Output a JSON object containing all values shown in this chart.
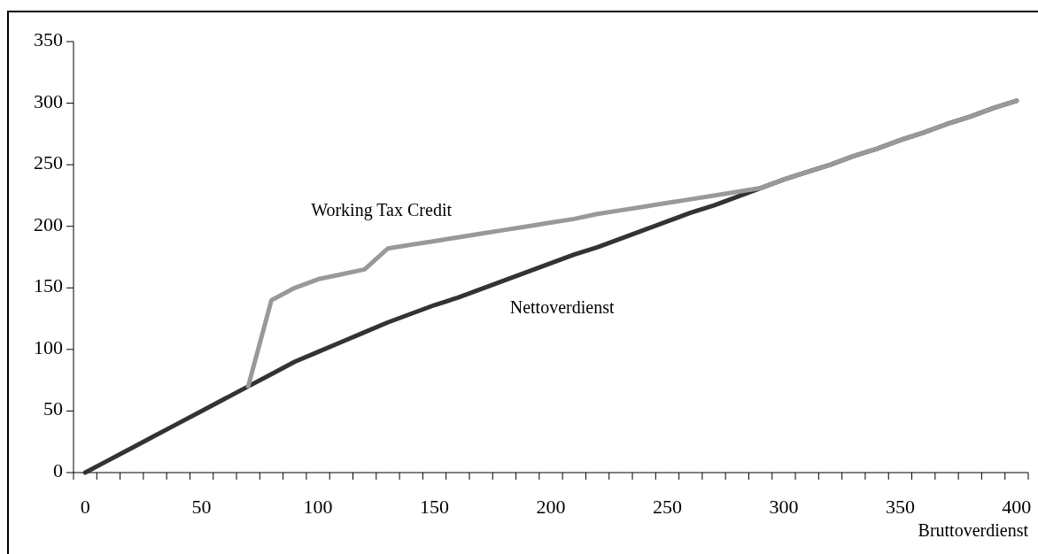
{
  "chart_data": {
    "type": "line",
    "xlabel": "Bruttoverdienst",
    "categories": [
      "0",
      null,
      null,
      null,
      null,
      "50",
      null,
      null,
      null,
      null,
      "100",
      null,
      null,
      null,
      null,
      "150",
      null,
      null,
      null,
      null,
      "200",
      null,
      null,
      null,
      null,
      "250",
      null,
      null,
      null,
      null,
      "300",
      null,
      null,
      null,
      null,
      "350",
      null,
      null,
      null,
      null,
      "400"
    ],
    "ylim": [
      0,
      350
    ],
    "yticks": [
      0,
      50,
      100,
      150,
      200,
      250,
      300,
      350
    ],
    "grid": false,
    "legend": false,
    "marker": "none",
    "line_style": "solid",
    "series": [
      {
        "name": "Nettoverdienst",
        "color": "#333333",
        "values": [
          0,
          10,
          20,
          30,
          40,
          50,
          60,
          70,
          80,
          90,
          98,
          106,
          114,
          122,
          129,
          136,
          142,
          149,
          156,
          163,
          170,
          177,
          183,
          190,
          197,
          204,
          211,
          217,
          224,
          231,
          238,
          244,
          250,
          257,
          263,
          270,
          276,
          283,
          289,
          296,
          302
        ]
      },
      {
        "name": "Working Tax Credit",
        "color": "#999999",
        "values": [
          null,
          null,
          null,
          null,
          null,
          null,
          null,
          70,
          140,
          150,
          157,
          161,
          165,
          182,
          185,
          188,
          191,
          194,
          197,
          200,
          203,
          206,
          210,
          213,
          216,
          219,
          222,
          225,
          228,
          231,
          238,
          244,
          250,
          257,
          263,
          270,
          276,
          283,
          289,
          296,
          302
        ]
      }
    ]
  }
}
